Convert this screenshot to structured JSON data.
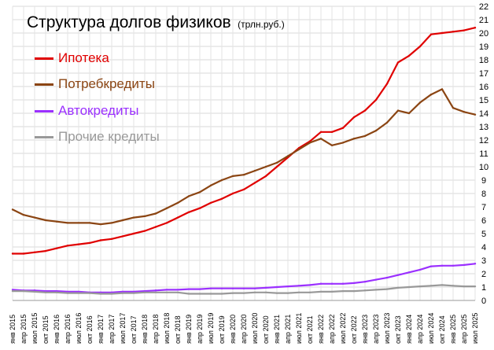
{
  "chart_data": {
    "type": "line",
    "title": "Структура долгов физиков",
    "subtitle": "(трлн.руб.)",
    "ylim": [
      0,
      22
    ],
    "y_ticks": [
      "0",
      "1",
      "2",
      "3",
      "4",
      "5",
      "6",
      "7",
      "8",
      "9",
      "10",
      "11",
      "12",
      "13",
      "14",
      "15",
      "16",
      "17",
      "18",
      "19",
      "20",
      "21",
      "22"
    ],
    "grid": true,
    "legend_position": "top-left",
    "x_ticks": [
      "янв 2015",
      "апр 2015",
      "июл 2015",
      "окт 2015",
      "янв 2016",
      "апр 2016",
      "июл 2016",
      "окт 2016",
      "янв 2017",
      "апр 2017",
      "июл 2017",
      "окт 2017",
      "янв 2018",
      "апр 2018",
      "июл 2018",
      "окт 2018",
      "янв 2019",
      "апр 2019",
      "июл 2019",
      "окт 2019",
      "янв 2020",
      "апр 2020",
      "июл 2020",
      "окт 2020",
      "янв 2021",
      "апр 2021",
      "июл 2021",
      "окт 2021",
      "янв 2022",
      "апр 2022",
      "июл 2022",
      "окт 2022",
      "янв 2023",
      "апр 2023",
      "июл 2023",
      "окт 2023",
      "янв 2024",
      "апр 2024",
      "июл 2024",
      "окт 2024",
      "янв 2025",
      "апр 2025",
      "июл 2025"
    ],
    "series": [
      {
        "name": "Ипотека",
        "color": "#e00000",
        "values": [
          3.5,
          3.5,
          3.6,
          3.7,
          3.9,
          4.1,
          4.2,
          4.3,
          4.5,
          4.6,
          4.8,
          5.0,
          5.2,
          5.5,
          5.8,
          6.2,
          6.6,
          6.9,
          7.3,
          7.6,
          8.0,
          8.3,
          8.8,
          9.3,
          10.0,
          10.7,
          11.4,
          11.9,
          12.6,
          12.6,
          12.9,
          13.7,
          14.2,
          15.0,
          16.2,
          17.8,
          18.3,
          19.0,
          19.9,
          20.0,
          20.1,
          20.2,
          20.4
        ]
      },
      {
        "name": "Потребкредиты",
        "color": "#8b4513",
        "values": [
          6.8,
          6.4,
          6.2,
          6.0,
          5.9,
          5.8,
          5.8,
          5.8,
          5.7,
          5.8,
          6.0,
          6.2,
          6.3,
          6.5,
          6.9,
          7.3,
          7.8,
          8.1,
          8.6,
          9.0,
          9.3,
          9.4,
          9.7,
          10.0,
          10.3,
          10.8,
          11.3,
          11.8,
          12.1,
          11.6,
          11.8,
          12.1,
          12.3,
          12.7,
          13.3,
          14.2,
          14.0,
          14.8,
          15.4,
          15.8,
          14.4,
          14.1,
          13.9
        ]
      },
      {
        "name": "Автокредиты",
        "color": "#9b30ff",
        "values": [
          0.8,
          0.75,
          0.75,
          0.7,
          0.7,
          0.65,
          0.65,
          0.6,
          0.6,
          0.6,
          0.65,
          0.65,
          0.7,
          0.75,
          0.8,
          0.8,
          0.85,
          0.85,
          0.9,
          0.9,
          0.9,
          0.9,
          0.9,
          0.95,
          1.0,
          1.05,
          1.1,
          1.15,
          1.25,
          1.25,
          1.25,
          1.3,
          1.4,
          1.55,
          1.7,
          1.9,
          2.1,
          2.3,
          2.55,
          2.6,
          2.6,
          2.65,
          2.75
        ]
      },
      {
        "name": "Прочие кредиты",
        "color": "#999999",
        "values": [
          0.7,
          0.7,
          0.65,
          0.6,
          0.6,
          0.55,
          0.55,
          0.55,
          0.5,
          0.5,
          0.55,
          0.55,
          0.6,
          0.6,
          0.6,
          0.6,
          0.5,
          0.5,
          0.5,
          0.5,
          0.55,
          0.55,
          0.6,
          0.6,
          0.55,
          0.55,
          0.6,
          0.6,
          0.65,
          0.65,
          0.7,
          0.7,
          0.75,
          0.8,
          0.85,
          0.95,
          1.0,
          1.05,
          1.1,
          1.15,
          1.1,
          1.05,
          1.05
        ]
      }
    ]
  }
}
